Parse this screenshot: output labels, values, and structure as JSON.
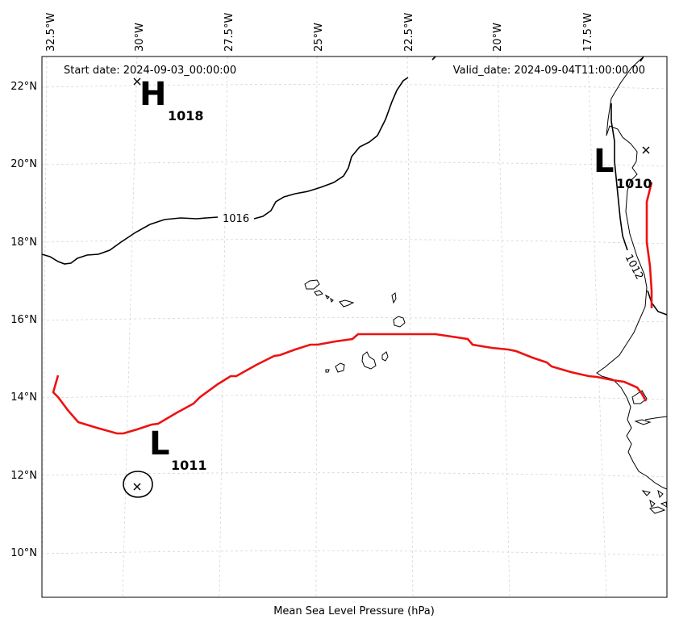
{
  "header": {
    "start_date": "Start date: 2024-09-03_00:00:00",
    "valid_date": "Valid_date: 2024-09-04T11:00:00.00"
  },
  "xlabel": "Mean Sea Level Pressure (hPa)",
  "lon_ticks": [
    "32.5°W",
    "30°W",
    "27.5°W",
    "25°W",
    "22.5°W",
    "20°W",
    "17.5°W"
  ],
  "lat_ticks": [
    "22°N",
    "20°N",
    "18°N",
    "16°N",
    "14°N",
    "12°N",
    "10°N"
  ],
  "pressure_centers": [
    {
      "type": "H",
      "value": "1018"
    },
    {
      "type": "L",
      "value": "1010"
    },
    {
      "type": "L",
      "value": "1011"
    }
  ],
  "isobar_labels": [
    "1016",
    "1012"
  ],
  "colors": {
    "isobar": "#000000",
    "front": "#ee1111",
    "grid": "#d0d0d0"
  }
}
